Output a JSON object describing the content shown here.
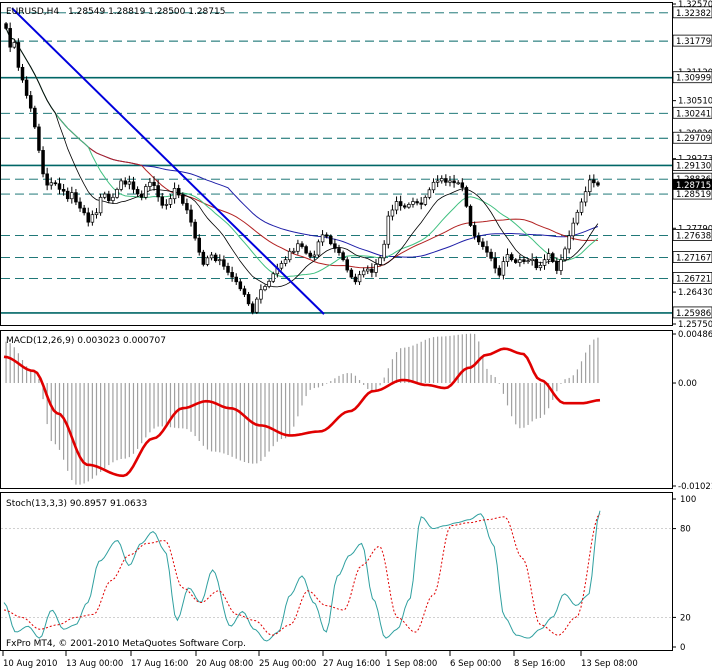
{
  "header": {
    "symbol": "EURUSD,H4",
    "ohlc": "1.28549 1.28819 1.28500 1.28715"
  },
  "copyright": "FxPro MT4, © 2001-2010 MetaQuotes Software Corp.",
  "colors": {
    "background": "#ffffff",
    "candle": "#000000",
    "ma_blue": "#1f1fa8",
    "ma_red": "#b22222",
    "ma_green": "#40c080",
    "ma_black": "#000000",
    "trendline": "#0000dd",
    "hline": "#006666",
    "macd_hist": "#a0a0a0",
    "macd_signal": "#e00000",
    "stoch_main": "#30a0a0",
    "stoch_signal": "#e00000"
  },
  "chart_data": [
    {
      "type": "candlestick",
      "title": "EURUSD,H4",
      "ylim": [
        1.2575,
        1.3257
      ],
      "y_ticks": [
        "1.32570",
        "1.31120",
        "1.30510",
        "1.29820",
        "1.29273",
        "1.27790",
        "1.26430",
        "1.25750"
      ],
      "x_ticks": [
        "10 Aug 2010",
        "13 Aug 00:00",
        "17 Aug 16:00",
        "20 Aug 08:00",
        "25 Aug 00:00",
        "27 Aug 16:00",
        "1 Sep 08:00",
        "6 Sep 00:00",
        "8 Sep 16:00",
        "13 Sep 08:00"
      ],
      "current_price": "1.28715",
      "price_levels": [
        {
          "label": "1.32382",
          "value": 1.32382,
          "style": "dashed"
        },
        {
          "label": "1.31779",
          "value": 1.31779,
          "style": "dashed"
        },
        {
          "label": "1.30999",
          "value": 1.30999,
          "style": "solid"
        },
        {
          "label": "1.30241",
          "value": 1.30241,
          "style": "dashed"
        },
        {
          "label": "1.29709",
          "value": 1.29709,
          "style": "dashed"
        },
        {
          "label": "1.29130",
          "value": 1.2913,
          "style": "solid"
        },
        {
          "label": "1.28836",
          "value": 1.28836,
          "style": "dashed"
        },
        {
          "label": "1.28519",
          "value": 1.28519,
          "style": "dashed"
        },
        {
          "label": "1.27638",
          "value": 1.27638,
          "style": "dashed"
        },
        {
          "label": "1.27167",
          "value": 1.27167,
          "style": "dashed"
        },
        {
          "label": "1.26721",
          "value": 1.26721,
          "style": "dashed"
        },
        {
          "label": "1.25986",
          "value": 1.25986,
          "style": "solid"
        }
      ],
      "closes": [
        1.3205,
        1.3165,
        1.3175,
        1.3122,
        1.3095,
        1.3062,
        1.3035,
        1.2995,
        1.2945,
        1.2895,
        1.2871,
        1.2876,
        1.2874,
        1.2862,
        1.2858,
        1.2842,
        1.2855,
        1.2835,
        1.2822,
        1.2812,
        1.2792,
        1.2808,
        1.2812,
        1.2845,
        1.2852,
        1.2838,
        1.2845,
        1.2862,
        1.288,
        1.2873,
        1.2878,
        1.2862,
        1.2852,
        1.2845,
        1.2868,
        1.2877,
        1.287,
        1.2846,
        1.2828,
        1.283,
        1.2842,
        1.2864,
        1.285,
        1.2832,
        1.2818,
        1.2792,
        1.2758,
        1.2728,
        1.2702,
        1.2716,
        1.2722,
        1.271,
        1.2712,
        1.2698,
        1.2685,
        1.2675,
        1.2665,
        1.265,
        1.2638,
        1.2618,
        1.26,
        1.2628,
        1.2648,
        1.2655,
        1.2666,
        1.2682,
        1.2694,
        1.2704,
        1.2712,
        1.273,
        1.273,
        1.2746,
        1.274,
        1.2726,
        1.2719,
        1.2722,
        1.275,
        1.2765,
        1.2762,
        1.2746,
        1.2736,
        1.2727,
        1.2712,
        1.269,
        1.2675,
        1.2665,
        1.268,
        1.2688,
        1.2692,
        1.2685,
        1.2702,
        1.2716,
        1.2745,
        1.2805,
        1.2818,
        1.2836,
        1.2827,
        1.2824,
        1.283,
        1.2836,
        1.2833,
        1.283,
        1.2845,
        1.2861,
        1.2877,
        1.288,
        1.2885,
        1.2877,
        1.288,
        1.2876,
        1.2876,
        1.2866,
        1.2826,
        1.2785,
        1.2762,
        1.275,
        1.274,
        1.2728,
        1.2715,
        1.2694,
        1.2679,
        1.2708,
        1.2723,
        1.2712,
        1.2706,
        1.2712,
        1.2708,
        1.271,
        1.2713,
        1.2695,
        1.27,
        1.2712,
        1.2725,
        1.2708,
        1.2689,
        1.2712,
        1.2735,
        1.2763,
        1.279,
        1.2813,
        1.2835,
        1.2857,
        1.2882,
        1.2876,
        1.2871
      ]
    },
    {
      "type": "line",
      "title": "MACD(12,26,9) 0.003023 0.000707",
      "ylim": [
        -0.01021,
        0.00486
      ],
      "y_ticks": [
        "0.00486",
        "0.00",
        "-0.01021"
      ],
      "hist_x": [
        0.0,
        0.05,
        0.08,
        0.12,
        0.2,
        0.26,
        0.3,
        0.35,
        0.42,
        0.47,
        0.52,
        0.58,
        0.62,
        0.67,
        0.73,
        0.79,
        0.82,
        0.87,
        0.9,
        0.95,
        1.0
      ],
      "hist_y": [
        0.0041,
        0.001,
        -0.006,
        -0.0101,
        -0.0075,
        -0.0043,
        -0.0045,
        -0.0068,
        -0.008,
        -0.0055,
        -0.0005,
        0.001,
        -0.0008,
        0.0035,
        0.0046,
        0.0049,
        0.0008,
        -0.0045,
        -0.0035,
        0.0005,
        0.0045
      ],
      "signal_x": [
        0.0,
        0.05,
        0.09,
        0.14,
        0.2,
        0.25,
        0.3,
        0.34,
        0.38,
        0.43,
        0.48,
        0.53,
        0.58,
        0.62,
        0.67,
        0.71,
        0.74,
        0.78,
        0.81,
        0.84,
        0.87,
        0.9,
        0.94,
        0.97,
        1.0
      ],
      "signal_y": [
        0.0026,
        0.0012,
        -0.003,
        -0.0081,
        -0.0092,
        -0.0055,
        -0.0025,
        -0.0018,
        -0.0025,
        -0.0042,
        -0.0052,
        -0.0048,
        -0.0028,
        -0.0008,
        0.0003,
        -0.0002,
        -0.0005,
        0.0015,
        0.0028,
        0.0034,
        0.0029,
        0.0003,
        -0.002,
        -0.002,
        -0.0017
      ]
    },
    {
      "type": "line",
      "title": "Stoch(13,3,3) 90.8957 91.0633",
      "ylim": [
        0,
        100
      ],
      "y_ticks": [
        "100",
        "80",
        "20",
        "0"
      ],
      "main_x": [
        0.0,
        0.02,
        0.04,
        0.06,
        0.08,
        0.1,
        0.12,
        0.14,
        0.16,
        0.19,
        0.21,
        0.23,
        0.25,
        0.27,
        0.29,
        0.31,
        0.33,
        0.35,
        0.38,
        0.4,
        0.42,
        0.44,
        0.46,
        0.48,
        0.5,
        0.52,
        0.54,
        0.56,
        0.58,
        0.6,
        0.62,
        0.64,
        0.66,
        0.68,
        0.7,
        0.72,
        0.74,
        0.76,
        0.78,
        0.8,
        0.82,
        0.84,
        0.86,
        0.88,
        0.9,
        0.92,
        0.94,
        0.96,
        0.98,
        1.0
      ],
      "main_y": [
        30,
        10,
        14,
        6,
        25,
        12,
        15,
        30,
        58,
        72,
        55,
        70,
        78,
        65,
        18,
        40,
        30,
        52,
        14,
        24,
        12,
        4,
        10,
        35,
        48,
        30,
        10,
        48,
        62,
        70,
        32,
        6,
        12,
        32,
        88,
        80,
        82,
        84,
        86,
        90,
        70,
        20,
        8,
        6,
        12,
        20,
        36,
        28,
        35,
        92
      ],
      "signal_x": [
        0.0,
        0.03,
        0.06,
        0.09,
        0.12,
        0.15,
        0.18,
        0.21,
        0.24,
        0.27,
        0.3,
        0.33,
        0.36,
        0.39,
        0.42,
        0.45,
        0.48,
        0.51,
        0.54,
        0.57,
        0.6,
        0.63,
        0.66,
        0.69,
        0.72,
        0.75,
        0.78,
        0.81,
        0.84,
        0.87,
        0.9,
        0.93,
        0.96,
        1.0
      ],
      "signal_y": [
        25,
        20,
        12,
        15,
        20,
        22,
        45,
        62,
        70,
        72,
        40,
        30,
        38,
        22,
        18,
        8,
        15,
        38,
        28,
        25,
        55,
        68,
        20,
        10,
        35,
        82,
        84,
        86,
        88,
        60,
        15,
        8,
        20,
        90
      ]
    }
  ]
}
